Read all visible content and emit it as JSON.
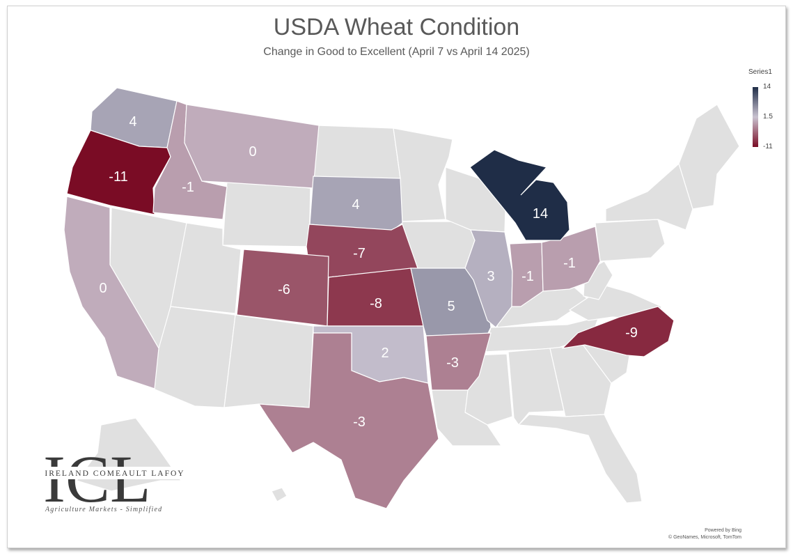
{
  "title": "USDA Wheat Condition",
  "subtitle": "Change in Good to Excellent (April 7 vs April 14 2025)",
  "legend": {
    "series_name": "Series1",
    "max_label": "14",
    "mid_label": "1.5",
    "min_label": "-11",
    "colors": {
      "max": "#1f2d47",
      "mid": "#c9c2d0",
      "min": "#7a0c25",
      "no_data": "#e0e0e0",
      "border": "#ffffff"
    }
  },
  "attribution": {
    "line1": "Powered by Bing",
    "line2": "© GeoNames, Microsoft, TomTom"
  },
  "logo": {
    "letters": "ICL",
    "company": "IRELAND COMEAULT LAFOY",
    "tagline": "Agriculture Markets - Simplified"
  },
  "chart_data": {
    "type": "choropleth",
    "region": "United States",
    "min": -11,
    "mid": 1.5,
    "max": 14,
    "states": [
      {
        "state": "Washington",
        "value": 4
      },
      {
        "state": "Oregon",
        "value": -11
      },
      {
        "state": "Idaho",
        "value": -1
      },
      {
        "state": "Montana",
        "value": 0
      },
      {
        "state": "California",
        "value": 0
      },
      {
        "state": "South Dakota",
        "value": 4
      },
      {
        "state": "Nebraska",
        "value": -7
      },
      {
        "state": "Colorado",
        "value": -6
      },
      {
        "state": "Kansas",
        "value": -8
      },
      {
        "state": "Oklahoma",
        "value": 2
      },
      {
        "state": "Texas",
        "value": -3
      },
      {
        "state": "Missouri",
        "value": 5
      },
      {
        "state": "Arkansas",
        "value": -3
      },
      {
        "state": "Illinois",
        "value": 3
      },
      {
        "state": "Indiana",
        "value": -1
      },
      {
        "state": "Ohio",
        "value": -1
      },
      {
        "state": "Michigan",
        "value": 14
      },
      {
        "state": "North Carolina",
        "value": -9
      }
    ]
  }
}
